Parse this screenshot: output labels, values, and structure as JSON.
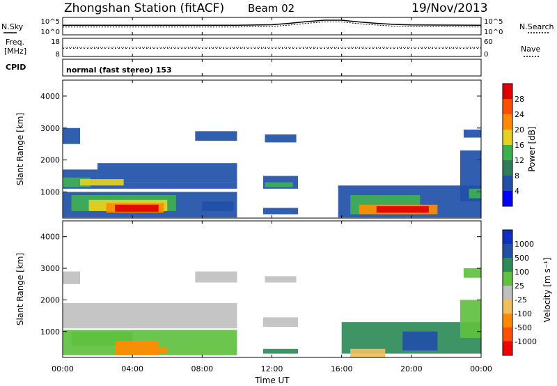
{
  "header": {
    "station": "Zhongshan Station (fitACF)",
    "beam": "Beam 02",
    "date": "19/Nov/2013"
  },
  "labels": {
    "nsky": "N.Sky",
    "nsearch": "N.Search",
    "freq_line1": "Freq.",
    "freq_line2": "[MHz]",
    "nave": "Nave",
    "cpid": "CPID",
    "cpid_value": "normal (fast stereo) 153",
    "ylabel": "Slant Range [km]",
    "xlabel": "Time UT",
    "power_label": "Power [dB]",
    "velocity_label": "Velocity [m s⁻¹]"
  },
  "noise_panel": {
    "left_ticks": [
      "10^5",
      "10^0"
    ],
    "right_ticks": [
      "10^5",
      "10^0"
    ]
  },
  "freq_panel": {
    "left_ticks": [
      "18",
      "8"
    ],
    "right_ticks": [
      "60",
      "0"
    ]
  },
  "colors": {
    "power": [
      "#0000ff",
      "#2050a8",
      "#2f7b5a",
      "#3fb050",
      "#e8d020",
      "#ff8c00",
      "#ff5000",
      "#e00000"
    ],
    "velocity": [
      "#ee0000",
      "#ff5000",
      "#ff8c00",
      "#f0c060",
      "#c0c0c0",
      "#60c040",
      "#2e8b57",
      "#2050a8",
      "#1030c0"
    ]
  },
  "chart_data": {
    "type": "heatmap",
    "x_axis": {
      "label": "Time UT",
      "range": [
        "00:00",
        "24:00"
      ],
      "ticks": [
        "00:00",
        "04:00",
        "08:00",
        "12:00",
        "16:00",
        "20:00",
        "00:00"
      ]
    },
    "y_axis": {
      "label": "Slant Range [km]",
      "range": [
        180,
        4500
      ],
      "ticks": [
        1000,
        2000,
        3000,
        4000
      ]
    },
    "power_colorbar": {
      "label": "Power [dB]",
      "ticks": [
        4,
        8,
        12,
        16,
        20,
        24,
        28
      ],
      "range": [
        0,
        32
      ]
    },
    "velocity_colorbar": {
      "label": "Velocity [m s⁻¹]",
      "ticks": [
        "1000",
        "500",
        "100",
        "25",
        "-25",
        "-100",
        "-500",
        "-1000"
      ]
    },
    "power_regions": [
      {
        "t0": 0.0,
        "t1": 1.0,
        "r0": 2500,
        "r1": 3000,
        "level": 1
      },
      {
        "t0": 7.6,
        "t1": 10.0,
        "r0": 2600,
        "r1": 2900,
        "level": 1
      },
      {
        "t0": 11.6,
        "t1": 13.4,
        "r0": 2550,
        "r1": 2800,
        "level": 1
      },
      {
        "t0": 23.0,
        "t1": 24.0,
        "r0": 2700,
        "r1": 2950,
        "level": 1
      },
      {
        "t0": 0.0,
        "t1": 2.0,
        "r0": 1300,
        "r1": 1700,
        "level": 1
      },
      {
        "t0": 2.0,
        "t1": 10.0,
        "r0": 1300,
        "r1": 1900,
        "level": 1
      },
      {
        "t0": 0.0,
        "t1": 10.0,
        "r0": 1100,
        "r1": 1300,
        "level": 1
      },
      {
        "t0": 0.0,
        "t1": 1.6,
        "r0": 1150,
        "r1": 1450,
        "level": 3
      },
      {
        "t0": 1.0,
        "t1": 3.5,
        "r0": 1200,
        "r1": 1400,
        "level": 4
      },
      {
        "t0": 0.0,
        "t1": 10.0,
        "r0": 200,
        "r1": 1000,
        "level": 1
      },
      {
        "t0": 0.5,
        "t1": 6.5,
        "r0": 400,
        "r1": 900,
        "level": 3
      },
      {
        "t0": 1.5,
        "t1": 6.0,
        "r0": 400,
        "r1": 750,
        "level": 4
      },
      {
        "t0": 2.5,
        "t1": 5.8,
        "r0": 350,
        "r1": 650,
        "level": 5
      },
      {
        "t0": 3.0,
        "t1": 5.5,
        "r0": 380,
        "r1": 600,
        "level": 7
      },
      {
        "t0": 8.0,
        "t1": 9.8,
        "r0": 400,
        "r1": 700,
        "level": 1
      },
      {
        "t0": 11.5,
        "t1": 13.5,
        "r0": 1100,
        "r1": 1500,
        "level": 1
      },
      {
        "t0": 11.6,
        "t1": 13.2,
        "r0": 1150,
        "r1": 1300,
        "level": 3
      },
      {
        "t0": 11.5,
        "t1": 13.5,
        "r0": 300,
        "r1": 500,
        "level": 1
      },
      {
        "t0": 15.8,
        "t1": 24.0,
        "r0": 200,
        "r1": 1200,
        "level": 1
      },
      {
        "t0": 16.5,
        "t1": 20.5,
        "r0": 300,
        "r1": 900,
        "level": 3
      },
      {
        "t0": 17.0,
        "t1": 21.5,
        "r0": 300,
        "r1": 600,
        "level": 5
      },
      {
        "t0": 18.0,
        "t1": 21.0,
        "r0": 350,
        "r1": 550,
        "level": 7
      },
      {
        "t0": 22.8,
        "t1": 24.0,
        "r0": 700,
        "r1": 2300,
        "level": 1
      },
      {
        "t0": 23.3,
        "t1": 24.0,
        "r0": 800,
        "r1": 1100,
        "level": 3
      }
    ],
    "velocity_regions": [
      {
        "t0": 0.0,
        "t1": 1.0,
        "r0": 2500,
        "r1": 2900,
        "level": 4
      },
      {
        "t0": 7.6,
        "t1": 10.0,
        "r0": 2550,
        "r1": 2900,
        "level": 4
      },
      {
        "t0": 11.6,
        "t1": 13.4,
        "r0": 2550,
        "r1": 2750,
        "level": 4
      },
      {
        "t0": 23.0,
        "t1": 24.0,
        "r0": 2700,
        "r1": 3000,
        "level": 5
      },
      {
        "t0": 0.0,
        "t1": 10.0,
        "r0": 1100,
        "r1": 1900,
        "level": 4
      },
      {
        "t0": 11.5,
        "t1": 13.5,
        "r0": 1150,
        "r1": 1450,
        "level": 4
      },
      {
        "t0": 0.0,
        "t1": 10.0,
        "r0": 250,
        "r1": 1050,
        "level": 5
      },
      {
        "t0": 0.5,
        "t1": 4.0,
        "r0": 550,
        "r1": 1000,
        "level": 5
      },
      {
        "t0": 3.0,
        "t1": 5.5,
        "r0": 250,
        "r1": 700,
        "level": 2
      },
      {
        "t0": 5.0,
        "t1": 6.0,
        "r0": 300,
        "r1": 500,
        "level": 2
      },
      {
        "t0": 11.5,
        "t1": 13.5,
        "r0": 300,
        "r1": 450,
        "level": 6
      },
      {
        "t0": 16.0,
        "t1": 24.0,
        "r0": 300,
        "r1": 1300,
        "level": 6
      },
      {
        "t0": 19.5,
        "t1": 21.5,
        "r0": 400,
        "r1": 1000,
        "level": 7
      },
      {
        "t0": 16.5,
        "t1": 18.5,
        "r0": 180,
        "r1": 450,
        "level": 3
      },
      {
        "t0": 22.8,
        "t1": 24.0,
        "r0": 800,
        "r1": 2000,
        "level": 5
      }
    ],
    "noise_curves": {
      "t": [
        0,
        2,
        4,
        6,
        8,
        10,
        12,
        13,
        14,
        15,
        16,
        17,
        18,
        19,
        20,
        22,
        24
      ],
      "nsky": [
        0.55,
        0.55,
        0.55,
        0.55,
        0.55,
        0.55,
        0.58,
        0.66,
        0.76,
        0.84,
        0.84,
        0.74,
        0.66,
        0.6,
        0.57,
        0.56,
        0.55
      ],
      "nsearch": [
        0.45,
        0.45,
        0.45,
        0.45,
        0.45,
        0.45,
        0.48,
        0.56,
        0.66,
        0.74,
        0.74,
        0.64,
        0.56,
        0.5,
        0.47,
        0.46,
        0.45
      ]
    },
    "freq_value_mhz": 12.5,
    "nave_value": 30
  }
}
